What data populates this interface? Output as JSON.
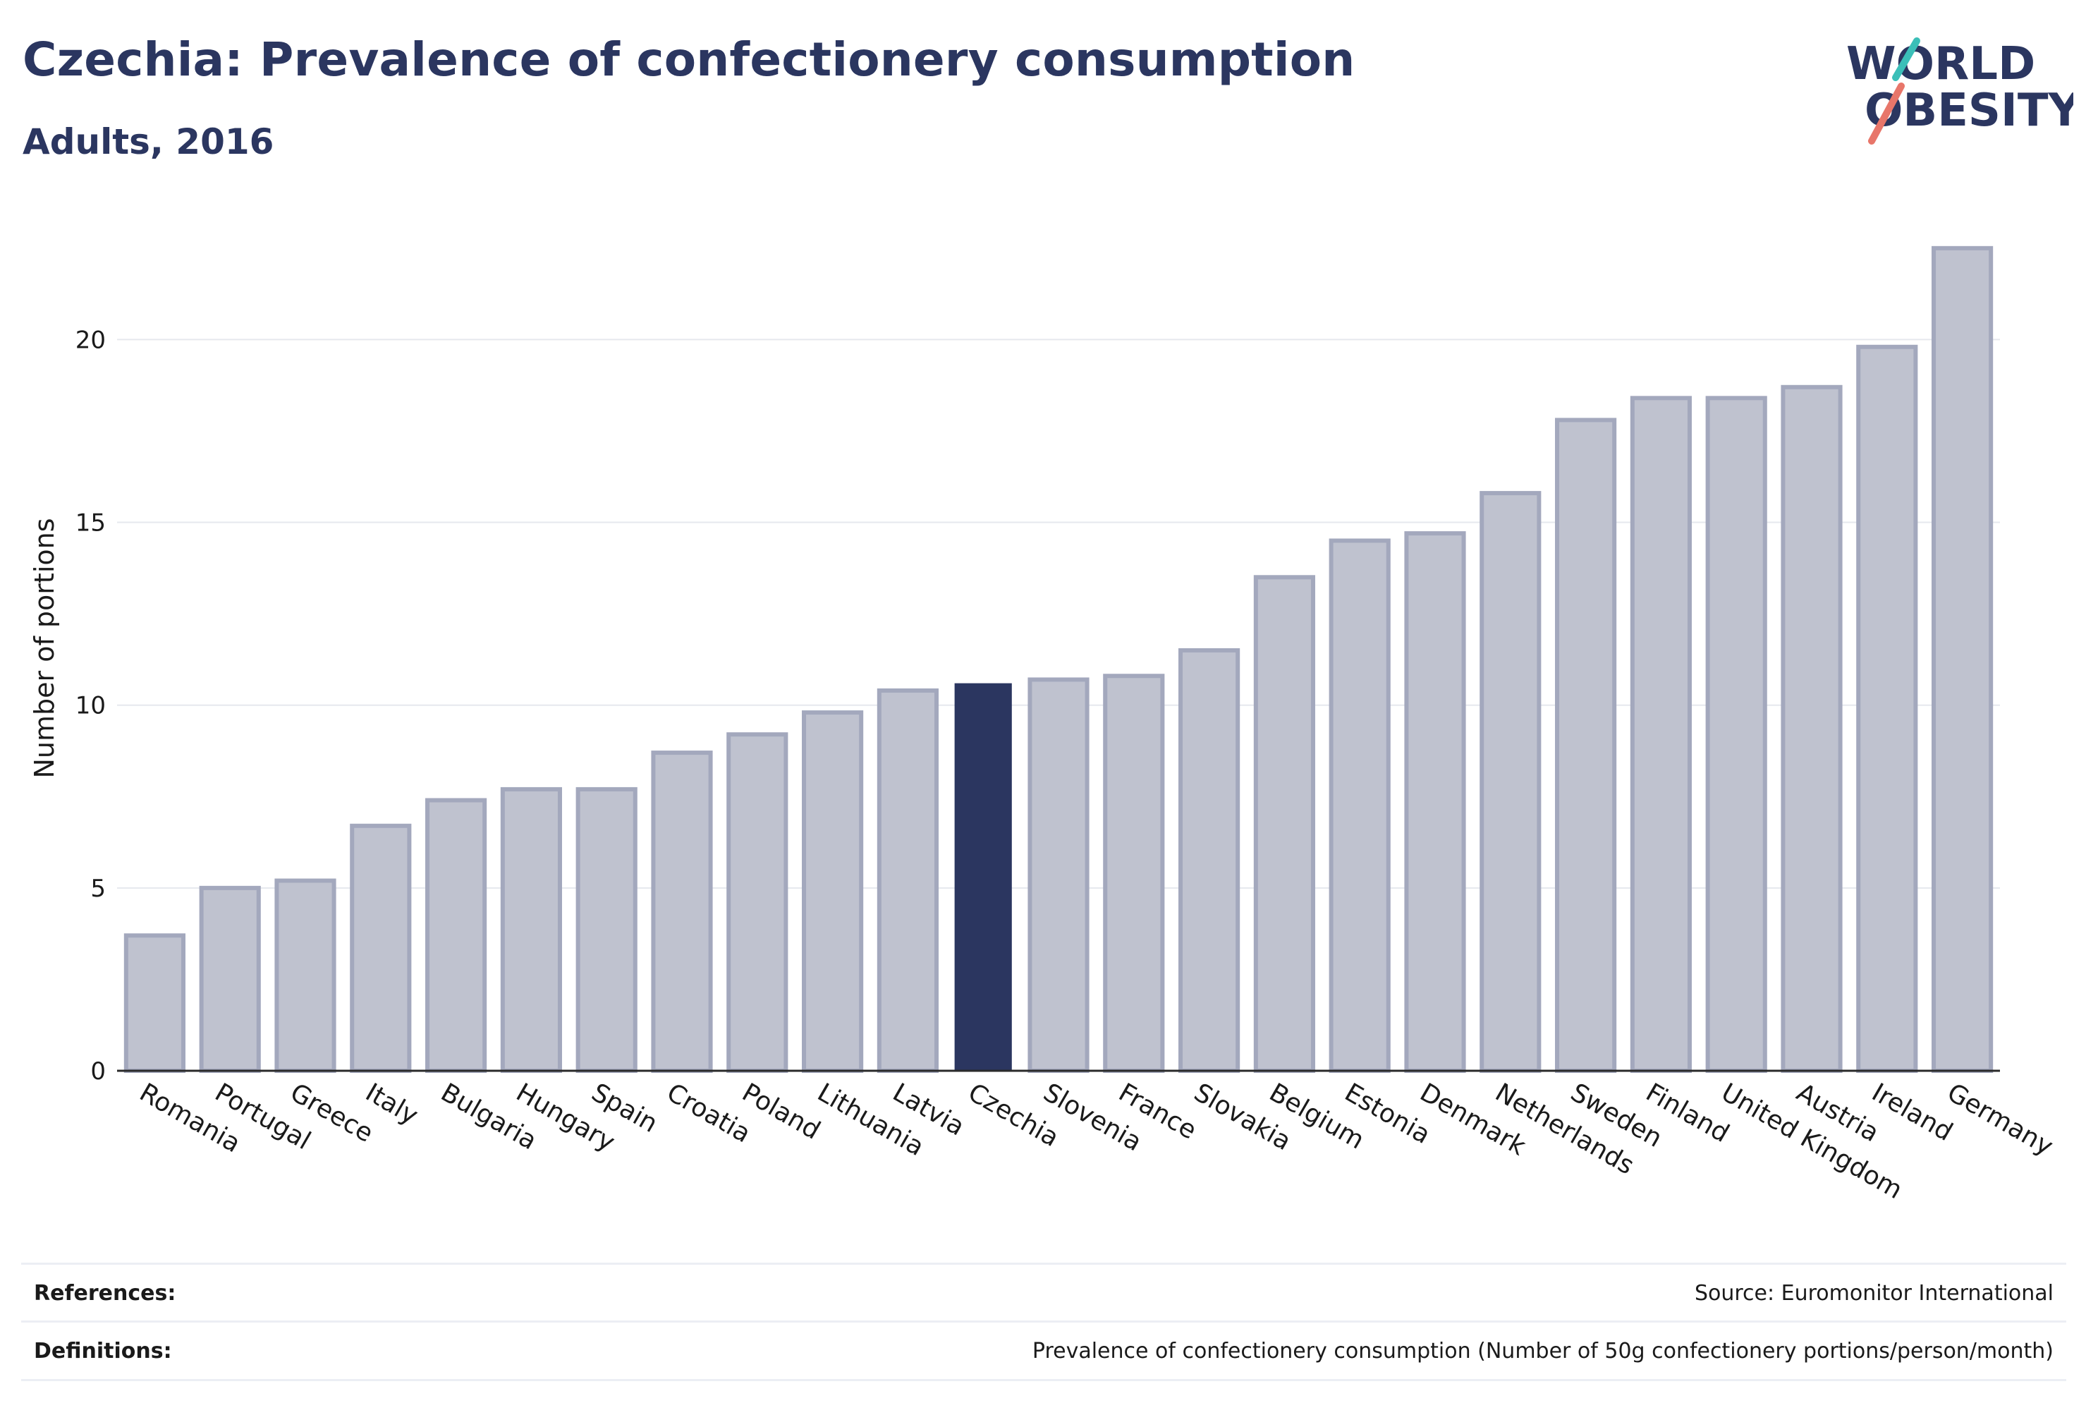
{
  "header": {
    "title": "Czechia: Prevalence of confectionery consumption",
    "subtitle": "Adults, 2016"
  },
  "logo": {
    "line1": "WORLD",
    "line2": "OBESITY",
    "colors": {
      "text": "#2b3660",
      "slash_top": "#3bbfb8",
      "slash_bottom": "#e8766a"
    }
  },
  "colors": {
    "highlight_bar": "#2b3660",
    "bar_fill": "#bfc2cf",
    "bar_stroke": "#a3a8bd",
    "grid": "#e6e8ee",
    "axis_text": "#1a1a1a"
  },
  "chart_data": {
    "type": "bar",
    "title": "Czechia: Prevalence of confectionery consumption",
    "subtitle": "Adults, 2016",
    "xlabel": "",
    "ylabel": "Number of portions",
    "ylim": [
      0,
      23.5
    ],
    "yticks": [
      0,
      5,
      10,
      15,
      20
    ],
    "grid": true,
    "highlight": "Czechia",
    "categories": [
      "Romania",
      "Portugal",
      "Greece",
      "Italy",
      "Bulgaria",
      "Hungary",
      "Spain",
      "Croatia",
      "Poland",
      "Lithuania",
      "Latvia",
      "Czechia",
      "Slovenia",
      "France",
      "Slovakia",
      "Belgium",
      "Estonia",
      "Denmark",
      "Netherlands",
      "Sweden",
      "Finland",
      "United Kingdom",
      "Austria",
      "Ireland",
      "Germany"
    ],
    "values": [
      3.7,
      5.0,
      5.2,
      6.7,
      7.4,
      7.7,
      7.7,
      8.7,
      9.2,
      9.8,
      10.4,
      10.6,
      10.7,
      10.8,
      11.5,
      13.5,
      14.5,
      14.7,
      15.8,
      17.8,
      18.4,
      18.4,
      18.7,
      19.8,
      22.5
    ]
  },
  "footer": {
    "references_label": "References:",
    "references_value": "Source: Euromonitor International",
    "definitions_label": "Definitions:",
    "definitions_value": "Prevalence of confectionery consumption (Number of 50g confectionery portions/person/month)"
  }
}
